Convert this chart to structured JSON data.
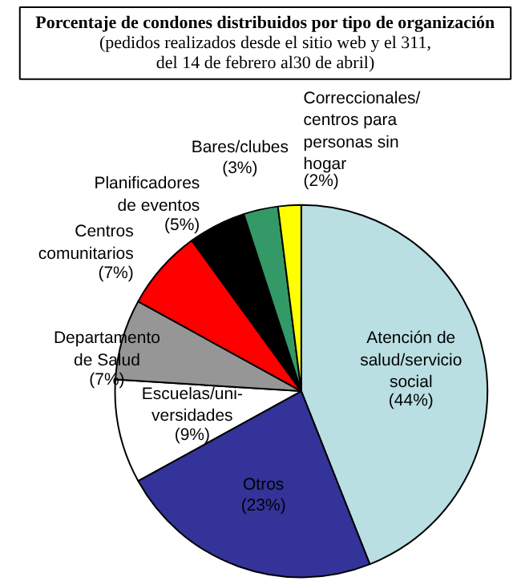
{
  "chart_data": {
    "type": "pie",
    "title": "Porcentaje de condones distribuidos por tipo de organización",
    "subtitle": "(pedidos realizados desde el sitio web y el 311,\ndel 14 de febrero al30 de abril)",
    "categories": [
      "Atención de\nsalud/servicio\nsocial",
      "Otros",
      "Escuelas/uni-\nversidades",
      "Departamento\nde Salud",
      "Centros\ncomunitarios",
      "Planificadores\nde eventos",
      "Bares/clubes",
      "Correccionales/\ncentros para\npersonas sin\nhogar"
    ],
    "values": [
      44,
      23,
      9,
      7,
      7,
      5,
      3,
      2
    ],
    "value_labels": [
      "(44%)",
      "(23%)",
      "(9%)",
      "(7%)",
      "(7%)",
      "(5%)",
      "(3%)",
      "(2%)"
    ],
    "colors": [
      "#b9dfe3",
      "#333399",
      "#ffffff",
      "#969696",
      "#ff0000",
      "#000000",
      "#339966",
      "#ffff00"
    ]
  }
}
